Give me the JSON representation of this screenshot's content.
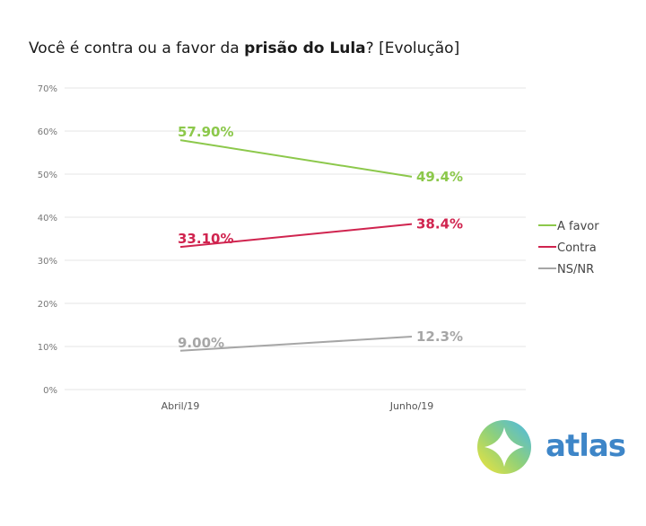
{
  "title": {
    "prefix": "Você é contra ou a favor da ",
    "bold": "prisão do Lula",
    "suffix": "? [Evolução]"
  },
  "chart_data": {
    "type": "line",
    "title": "Você é contra ou a favor da prisão do Lula? [Evolução]",
    "xlabel": "",
    "ylabel": "",
    "categories": [
      "Abril/19",
      "Junho/19"
    ],
    "ylim": [
      0,
      70
    ],
    "yticks": [
      0,
      10,
      20,
      30,
      40,
      50,
      60,
      70
    ],
    "ytick_labels": [
      "0%",
      "10%",
      "20%",
      "30%",
      "40%",
      "50%",
      "60%",
      "70%"
    ],
    "grid": true,
    "legend_position": "right",
    "series": [
      {
        "name": "A favor",
        "color": "#8cc84b",
        "values": [
          57.9,
          49.4
        ],
        "labels": [
          "57.90%",
          "49.4%"
        ]
      },
      {
        "name": "Contra",
        "color": "#d0244f",
        "values": [
          33.1,
          38.4
        ],
        "labels": [
          "33.10%",
          "38.4%"
        ]
      },
      {
        "name": "NS/NR",
        "color": "#a6a6a6",
        "values": [
          9.0,
          12.3
        ],
        "labels": [
          "9.00%",
          "12.3%"
        ]
      }
    ]
  },
  "brand": {
    "name": "atlas",
    "color": "#3e86c8",
    "icon": "compass-star-logo-icon"
  }
}
